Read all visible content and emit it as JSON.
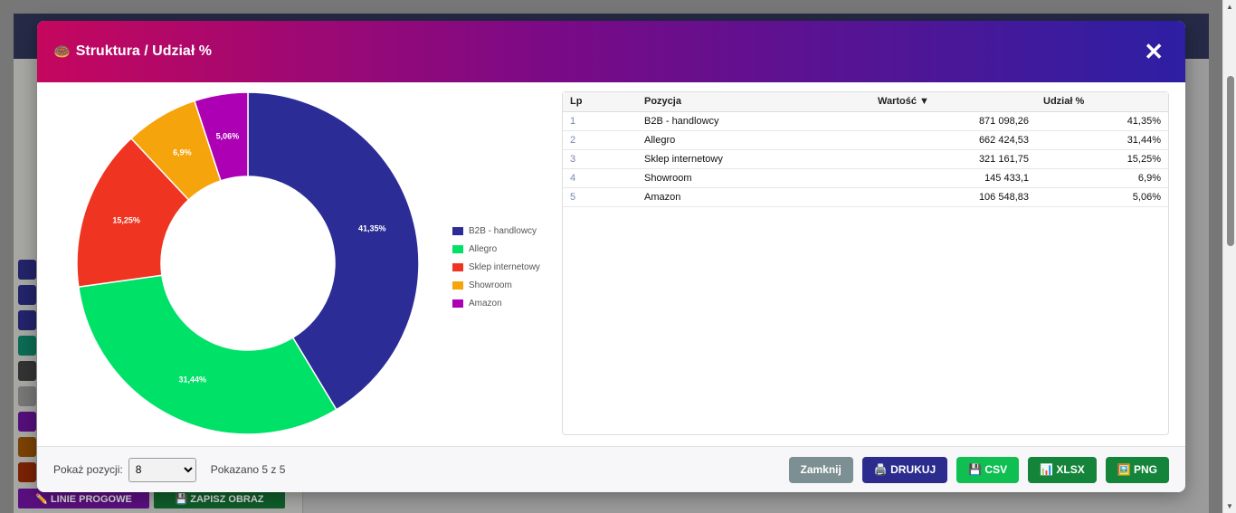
{
  "modal": {
    "title": "Struktura / Udział %",
    "title_icon": "🍩",
    "close_symbol": "✕"
  },
  "chart_data": {
    "type": "pie",
    "donut": true,
    "categories": [
      "B2B - handlowcy",
      "Allegro",
      "Sklep internetowy",
      "Showroom",
      "Amazon"
    ],
    "values": [
      871098.26,
      662424.53,
      321161.75,
      145433.1,
      106548.83
    ],
    "percent_labels": [
      "41,35%",
      "31,44%",
      "15,25%",
      "6,9%",
      "5,06%"
    ],
    "colors": [
      "#2b2c96",
      "#00e168",
      "#ef3421",
      "#f6a40c",
      "#ad00b5"
    ],
    "legend_position": "right"
  },
  "table": {
    "headers": {
      "lp": "Lp",
      "name": "Pozycja",
      "value": "Wartość ▼",
      "share": "Udział %"
    },
    "rows": [
      {
        "lp": "1",
        "name": "B2B - handlowcy",
        "value": "871 098,26",
        "share": "41,35%"
      },
      {
        "lp": "2",
        "name": "Allegro",
        "value": "662 424,53",
        "share": "31,44%"
      },
      {
        "lp": "3",
        "name": "Sklep internetowy",
        "value": "321 161,75",
        "share": "15,25%"
      },
      {
        "lp": "4",
        "name": "Showroom",
        "value": "145 433,1",
        "share": "6,9%"
      },
      {
        "lp": "5",
        "name": "Amazon",
        "value": "106 548,83",
        "share": "5,06%"
      }
    ]
  },
  "footer": {
    "rows_label": "Pokaż pozycji:",
    "rows_selected": "8",
    "shown_info": "Pokazano 5 z 5",
    "buttons": {
      "close": "Zamknij",
      "print": "🖨️ DRUKUJ",
      "csv": "💾 CSV",
      "xlsx": "📊 XLSX",
      "png": "🖼️ PNG"
    }
  },
  "background": {
    "btn_thresholds": "✏️ LINIE PROGOWE",
    "btn_save_image": "💾 ZAPISZ OBRAZ"
  }
}
